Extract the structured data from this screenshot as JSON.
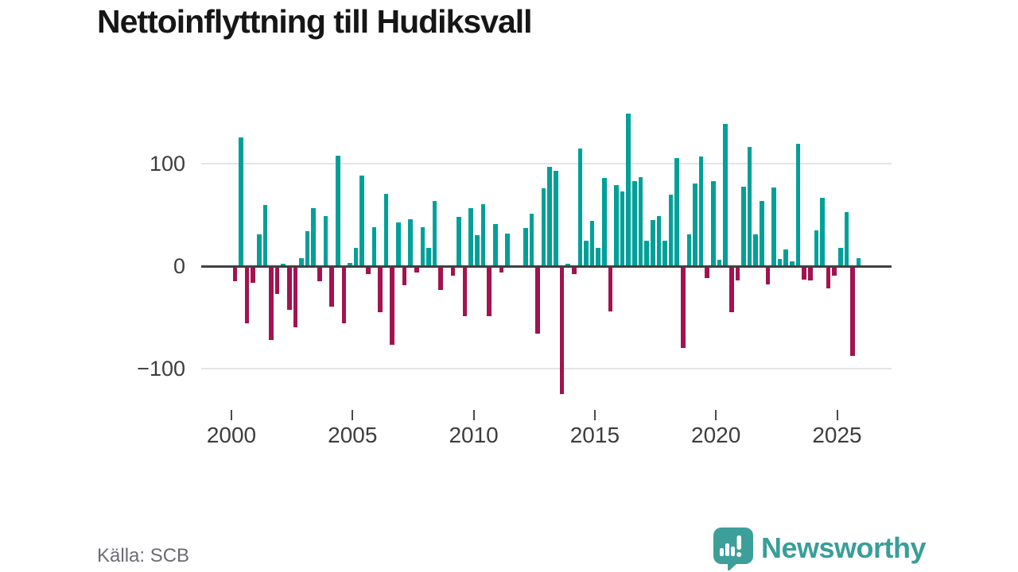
{
  "title": "Nettoinflyttning till Hudiksvall",
  "source": "Källa: SCB",
  "branding": {
    "name": "Newsworthy"
  },
  "chart_data": {
    "type": "bar",
    "title": "Nettoinflyttning till Hudiksvall",
    "xlabel": "",
    "ylabel": "",
    "frequency": "quarterly",
    "period_start": "2000 Q1",
    "period_end": "2025 Q4",
    "ylim": [
      -140,
      165
    ],
    "grid": "horizontal",
    "y_gridlines": [
      100,
      -100
    ],
    "y_ticks": [
      {
        "label": "100",
        "value": 100
      },
      {
        "label": "0",
        "value": 0
      },
      {
        "label": "−100",
        "value": -100
      }
    ],
    "x_ticks": [
      {
        "label": "2000",
        "year": 2000
      },
      {
        "label": "2005",
        "year": 2005
      },
      {
        "label": "2010",
        "year": 2010
      },
      {
        "label": "2015",
        "year": 2015
      },
      {
        "label": "2020",
        "year": 2020
      },
      {
        "label": "2025",
        "year": 2025
      }
    ],
    "colors": {
      "positive": "#00a099",
      "negative": "#a21350",
      "zero_axis": "#404040",
      "gridline": "#e4e4e4"
    },
    "values": [
      -15,
      126,
      -56,
      -16,
      31,
      60,
      -72,
      -27,
      2,
      -43,
      -60,
      8,
      34,
      57,
      -15,
      49,
      -40,
      108,
      -56,
      3,
      18,
      89,
      -8,
      38,
      -45,
      71,
      -77,
      43,
      -19,
      46,
      -6,
      38,
      18,
      64,
      -23,
      0,
      -9,
      48,
      -49,
      57,
      30,
      61,
      -49,
      41,
      -6,
      32,
      0,
      0,
      37,
      51,
      -66,
      76,
      97,
      93,
      -125,
      2,
      -8,
      115,
      25,
      44,
      18,
      86,
      -44,
      79,
      73,
      149,
      83,
      87,
      25,
      45,
      49,
      25,
      70,
      106,
      -80,
      31,
      81,
      107,
      -12,
      83,
      6,
      139,
      -45,
      -14,
      78,
      117,
      31,
      64,
      -18,
      77,
      7,
      16,
      5,
      120,
      -13,
      -14,
      35,
      67,
      -22,
      -9,
      18,
      53,
      -88,
      8
    ]
  }
}
